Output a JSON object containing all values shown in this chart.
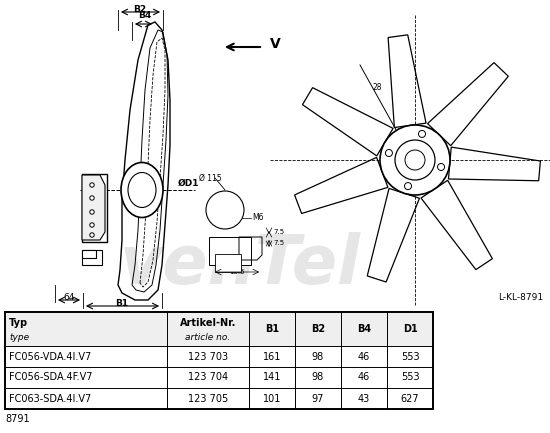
{
  "watermark": "venTel",
  "code": "L-KL-8791",
  "footer_code": "8791",
  "table_headers_line1": [
    "Typ",
    "Artikel-Nr.",
    "B1",
    "B2",
    "B4",
    "D1"
  ],
  "table_headers_line2": [
    "type",
    "article no.",
    "",
    "",
    "",
    ""
  ],
  "table_rows": [
    [
      "FC056-VDA.4I.V7",
      "123 703",
      "161",
      "98",
      "46",
      "553"
    ],
    [
      "FC056-SDA.4F.V7",
      "123 704",
      "141",
      "98",
      "46",
      "553"
    ],
    [
      "FC063-SDA.4I.V7",
      "123 705",
      "101",
      "97",
      "43",
      "627"
    ]
  ],
  "bg_color": "#ffffff",
  "line_color": "#000000",
  "table_border": "#000000"
}
